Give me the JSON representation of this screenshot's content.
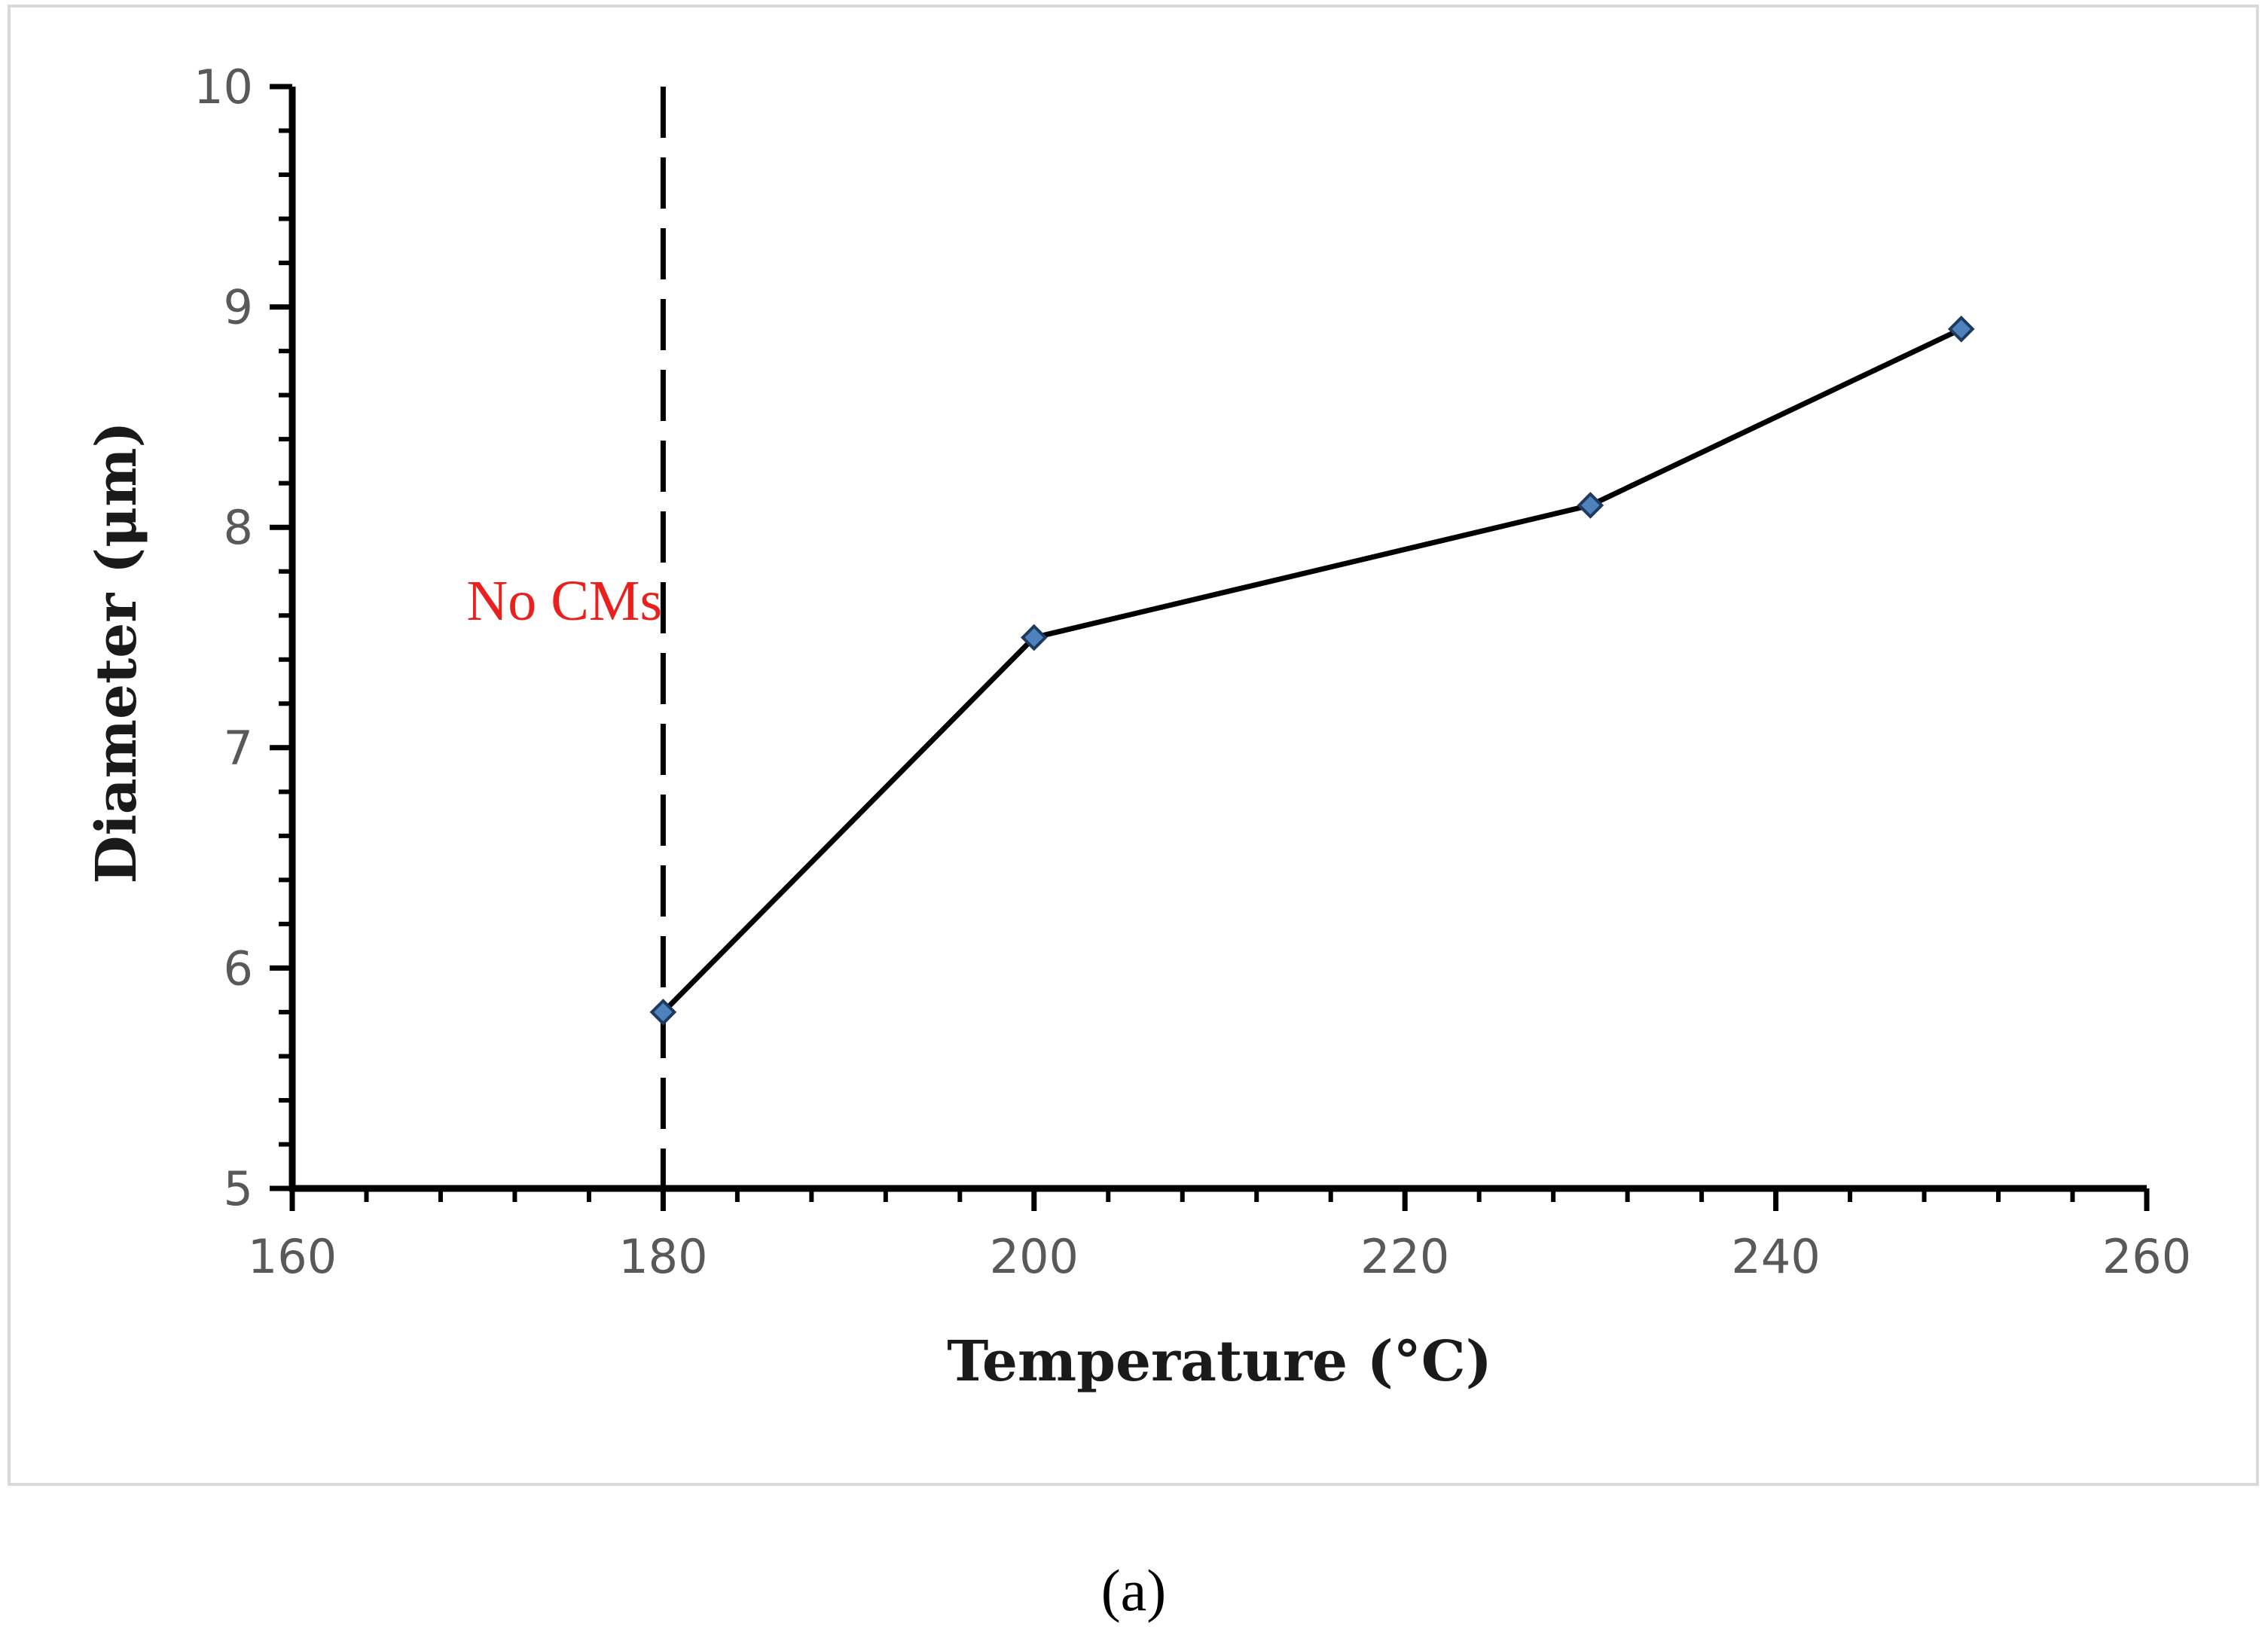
{
  "chart_data": {
    "type": "line",
    "title": "",
    "xlabel": "Temperature (°C)",
    "ylabel": "Diameter (μm)",
    "xlim": [
      160,
      260
    ],
    "ylim": [
      5,
      10
    ],
    "x_ticks": [
      "160",
      "180",
      "200",
      "220",
      "240",
      "260"
    ],
    "y_ticks": [
      "5",
      "6",
      "7",
      "8",
      "9",
      "10"
    ],
    "x_tick_values": [
      160,
      180,
      200,
      220,
      240,
      260
    ],
    "y_tick_values": [
      5,
      6,
      7,
      8,
      9,
      10
    ],
    "x_minor_step": 4,
    "y_minor_step": 0.2,
    "grid": false,
    "series": [
      {
        "name": "Diameter",
        "x": [
          180,
          200,
          230,
          250
        ],
        "values": [
          5.8,
          7.5,
          8.1,
          8.9
        ],
        "line_color": "#000000",
        "marker": "diamond",
        "marker_color": "#4f81bd"
      }
    ],
    "threshold_line": {
      "orientation": "vertical",
      "x": 180,
      "style": "dashed",
      "color": "#000000"
    },
    "annotations": [
      {
        "text": "No CMs",
        "x": 170,
        "y": 7.7,
        "color": "#e8211f"
      }
    ]
  },
  "caption": "(a)"
}
